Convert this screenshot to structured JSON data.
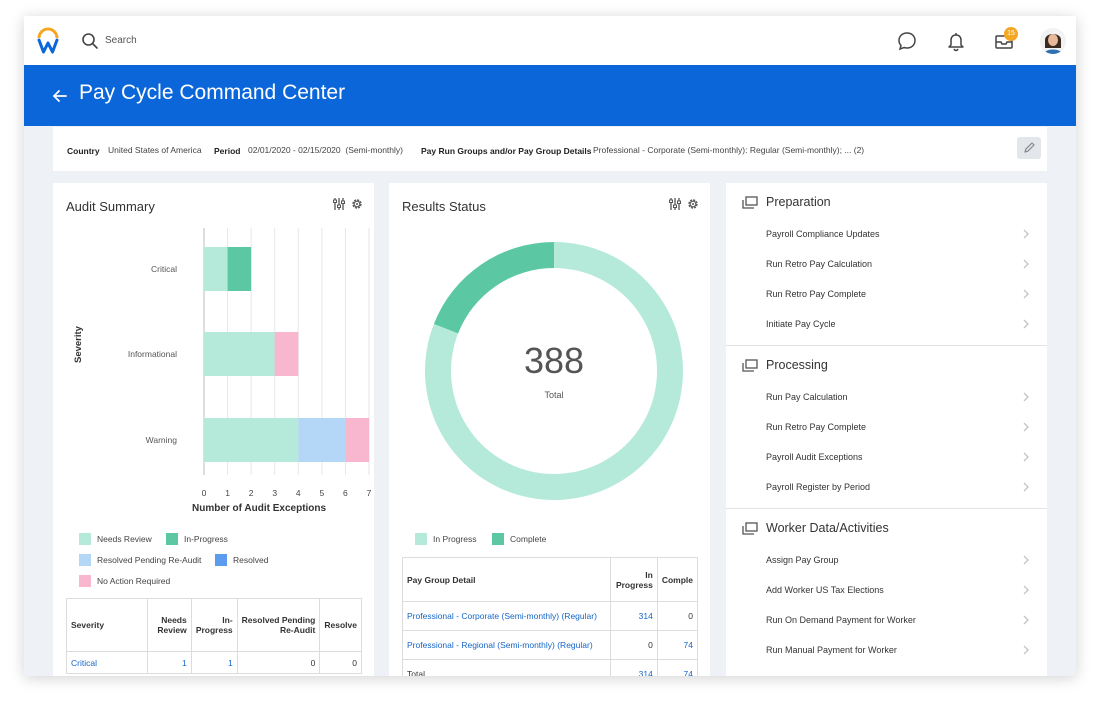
{
  "topbar": {
    "search_label": "Search",
    "notification_count": "15",
    "icons": [
      "workday-logo",
      "search-icon",
      "chat-icon",
      "bell-icon",
      "inbox-icon",
      "avatar"
    ]
  },
  "header": {
    "title": "Pay Cycle Command Center",
    "color": "#0a66d9"
  },
  "filters": {
    "country_label": "Country",
    "country_value": "United States of America",
    "period_label": "Period",
    "period_value": "02/01/2020 - 02/15/2020  (Semi-monthly)",
    "groups_label": "Pay Run Groups and/or Pay Group Details",
    "groups_value": "Professional - Corporate (Semi-monthly): Regular (Semi-monthly); ... (2)"
  },
  "audit_summary": {
    "title": "Audit Summary",
    "table": {
      "headers": [
        "Severity",
        "Needs Review",
        "In-Progress",
        "Resolved Pending Re-Audit",
        "Resolve"
      ],
      "header_lines": [
        [
          "Severity"
        ],
        [
          "Needs",
          "Review"
        ],
        [
          "In-",
          "Progress"
        ],
        [
          "Resolved Pending",
          "Re-Audit"
        ],
        [
          "Resolve"
        ]
      ],
      "rows": [
        [
          "Critical",
          "1",
          "1",
          "0",
          "0"
        ]
      ]
    }
  },
  "chart_data": {
    "type": "bar",
    "orientation": "horizontal",
    "stacked": true,
    "categories": [
      "Critical",
      "Informational",
      "Warning"
    ],
    "series": [
      {
        "name": "Needs Review",
        "values": [
          1,
          3,
          4
        ],
        "color": "#b5eadb"
      },
      {
        "name": "In-Progress",
        "values": [
          1,
          0,
          0
        ],
        "color": "#5bc8a3"
      },
      {
        "name": "Resolved Pending Re-Audit",
        "values": [
          0,
          0,
          2
        ],
        "color": "#b4d6f7"
      },
      {
        "name": "Resolved",
        "values": [
          0,
          0,
          0
        ],
        "color": "#5b9cee"
      },
      {
        "name": "No Action Required",
        "values": [
          0,
          1,
          1
        ],
        "color": "#f8b6cf"
      }
    ],
    "xlabel": "Number of Audit Exceptions",
    "ylabel": "Severity",
    "xlim": [
      0,
      7
    ],
    "xticks": [
      "0",
      "1",
      "2",
      "3",
      "4",
      "5",
      "6",
      "7"
    ],
    "grid": true,
    "legend": "bottom"
  },
  "results_status": {
    "title": "Results Status",
    "total_value": "388",
    "total_label": "Total",
    "donut": {
      "segments": [
        {
          "name": "In Progress",
          "value": 314,
          "color": "#b5eadb"
        },
        {
          "name": "Complete",
          "value": 74,
          "color": "#5bc8a3"
        }
      ]
    },
    "table": {
      "headers": [
        "Pay Group Detail",
        "In Progress",
        "Complete"
      ],
      "header_lines": [
        [
          "Pay Group Detail"
        ],
        [
          "In",
          "Progress"
        ],
        [
          "Comple"
        ]
      ],
      "rows": [
        [
          "Professional - Corporate (Semi-monthly) (Regular)",
          "314",
          "0"
        ],
        [
          "Professional - Regional (Semi-monthly) (Regular)",
          "0",
          "74"
        ],
        [
          "Total",
          "314",
          "74"
        ]
      ]
    }
  },
  "tasks": {
    "sections": [
      {
        "title": "Preparation",
        "items": [
          "Payroll Compliance Updates",
          "Run Retro Pay Calculation",
          "Run Retro Pay Complete",
          "Initiate Pay Cycle"
        ]
      },
      {
        "title": "Processing",
        "items": [
          "Run Pay Calculation",
          "Run Retro Pay Complete",
          "Payroll Audit Exceptions",
          "Payroll Register by Period"
        ]
      },
      {
        "title": "Worker Data/Activities",
        "items": [
          "Assign Pay Group",
          "Add Worker US Tax Elections",
          "Run On Demand Payment for Worker",
          "Run Manual Payment for Worker"
        ]
      }
    ]
  }
}
